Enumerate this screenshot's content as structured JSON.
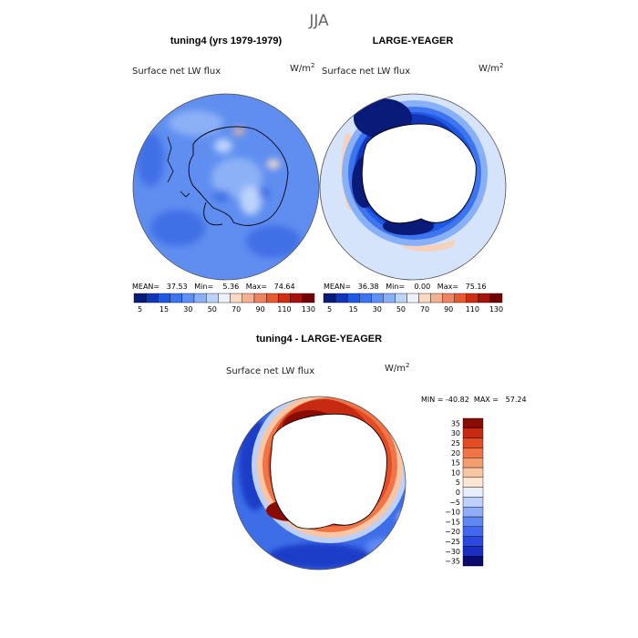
{
  "page_title": "JJA",
  "panels": {
    "left": {
      "heading": "tuning4 (yrs 1979-1979)",
      "variable": "Surface net LW flux",
      "units_base": "W/m",
      "units_exp": "2",
      "stats": "MEAN=   37.53   Min=    5.36   Max=   74.64"
    },
    "right": {
      "heading": "LARGE-YEAGER",
      "variable": "Surface net LW flux",
      "units_base": "W/m",
      "units_exp": "2",
      "stats": "MEAN=   36.38   Min=    0.00   Max=   75.16"
    },
    "diff": {
      "heading": "tuning4 - LARGE-YEAGER",
      "variable": "Surface net LW flux",
      "units_base": "W/m",
      "units_exp": "2",
      "stats": "MIN = -40.82  MAX =   57.24"
    }
  },
  "colors": {
    "abs_scale": [
      "#0a1a78",
      "#1236b8",
      "#1f58e2",
      "#3d74f0",
      "#5f90f5",
      "#88b0f8",
      "#bcd3fb",
      "#eef2f8",
      "#fad9c4",
      "#f6b092",
      "#f0835f",
      "#e65a32",
      "#cf2e16",
      "#a6120a",
      "#700404"
    ],
    "diff_scale": [
      "#0a0a70",
      "#1a2ec0",
      "#2a48e0",
      "#4168ee",
      "#6088f4",
      "#8eaef8",
      "#bcd0fb",
      "#e8eefa",
      "#fbe6d6",
      "#f9c6a4",
      "#f59c70",
      "#f07446",
      "#e44c26",
      "#c62a10",
      "#8a0a04"
    ]
  },
  "chart_data": [
    {
      "type": "heatmap",
      "title": "tuning4 (yrs 1979-1979)",
      "subtitle": "Surface net LW flux",
      "units": "W/m2",
      "projection": "south-polar-stereographic",
      "colorbar_levels": [
        5,
        10,
        15,
        20,
        30,
        40,
        50,
        60,
        70,
        80,
        90,
        100,
        110,
        120,
        130
      ],
      "colorbar_tick_labels": [
        "5",
        "15",
        "30",
        "50",
        "70",
        "90",
        "110",
        "130"
      ],
      "stats": {
        "mean": 37.53,
        "min": 5.36,
        "max": 74.64
      }
    },
    {
      "type": "heatmap",
      "title": "LARGE-YEAGER",
      "subtitle": "Surface net LW flux",
      "units": "W/m2",
      "projection": "south-polar-stereographic",
      "colorbar_levels": [
        5,
        10,
        15,
        20,
        30,
        40,
        50,
        60,
        70,
        80,
        90,
        100,
        110,
        120,
        130
      ],
      "colorbar_tick_labels": [
        "5",
        "15",
        "30",
        "50",
        "70",
        "90",
        "110",
        "130"
      ],
      "stats": {
        "mean": 36.38,
        "min": 0.0,
        "max": 75.16
      }
    },
    {
      "type": "heatmap",
      "title": "tuning4 - LARGE-YEAGER",
      "subtitle": "Surface net LW flux",
      "units": "W/m2",
      "projection": "south-polar-stereographic",
      "colorbar_levels": [
        -35,
        -30,
        -25,
        -20,
        -15,
        -10,
        -5,
        0,
        5,
        10,
        15,
        20,
        25,
        30,
        35
      ],
      "colorbar_tick_labels": [
        "35",
        "30",
        "25",
        "20",
        "15",
        "10",
        "5",
        "0",
        "−5",
        "−10",
        "−15",
        "−20",
        "−25",
        "−30",
        "−35"
      ],
      "stats": {
        "min": -40.82,
        "max": 57.24
      }
    }
  ]
}
